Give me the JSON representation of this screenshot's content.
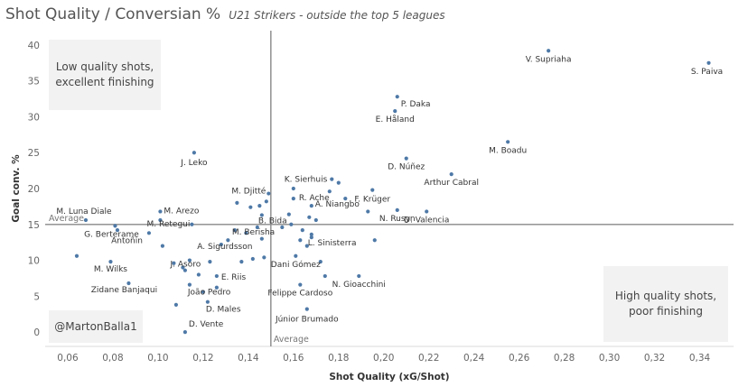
{
  "title": "Shot Quality / Conversian %",
  "subtitle": "U21 Strikers - outside the top 5 leagues",
  "annotations": {
    "top_left": "Low quality shots, excellent finishing",
    "bottom_right": "High quality shots, poor finishing",
    "credit": "@MartonBalla1",
    "avg_x_label": "Average",
    "avg_y_label": "Average"
  },
  "chart_data": {
    "type": "scatter",
    "xlabel": "Shot Quality (xG/Shot)",
    "ylabel": "Goal conv. %",
    "xlim": [
      0.05,
      0.355
    ],
    "ylim": [
      -2,
      42
    ],
    "x_ticks": [
      "0,06",
      "0,08",
      "0,10",
      "0,12",
      "0,14",
      "0,16",
      "0,18",
      "0,20",
      "0,22",
      "0,24",
      "0,26",
      "0,28",
      "0,30",
      "0,32",
      "0,34"
    ],
    "x_tick_values": [
      0.06,
      0.08,
      0.1,
      0.12,
      0.14,
      0.16,
      0.18,
      0.2,
      0.22,
      0.24,
      0.26,
      0.28,
      0.3,
      0.32,
      0.34
    ],
    "y_ticks": [
      "0",
      "5",
      "10",
      "15",
      "20",
      "25",
      "30",
      "35",
      "40"
    ],
    "y_tick_values": [
      0,
      5,
      10,
      15,
      20,
      25,
      30,
      35,
      40
    ],
    "average_x": 0.15,
    "average_y": 15,
    "point_color": "#4e79a7",
    "grid": false,
    "points": [
      {
        "x": 0.273,
        "y": 39.2,
        "label": "V. Supriaha"
      },
      {
        "x": 0.344,
        "y": 37.5,
        "label": "S. Paiva"
      },
      {
        "x": 0.206,
        "y": 32.8,
        "label": "P. Daka"
      },
      {
        "x": 0.205,
        "y": 30.8,
        "label": "E. Håland"
      },
      {
        "x": 0.255,
        "y": 26.5,
        "label": "M. Boadu"
      },
      {
        "x": 0.116,
        "y": 25.0,
        "label": "J. Leko"
      },
      {
        "x": 0.21,
        "y": 24.2,
        "label": "D. Núñez"
      },
      {
        "x": 0.23,
        "y": 22.0,
        "label": "Arthur Cabral"
      },
      {
        "x": 0.177,
        "y": 21.3,
        "label": "K. Sierhuis"
      },
      {
        "x": 0.149,
        "y": 19.3,
        "label": "M. Djitté"
      },
      {
        "x": 0.16,
        "y": 18.6,
        "label": "R. Ache"
      },
      {
        "x": 0.195,
        "y": 19.8,
        "label": "F. Krüger"
      },
      {
        "x": 0.168,
        "y": 17.6,
        "label": "A. Niangbo"
      },
      {
        "x": 0.101,
        "y": 16.8,
        "label": "M. Arezo"
      },
      {
        "x": 0.068,
        "y": 15.6,
        "label": "M. Luna Diale"
      },
      {
        "x": 0.146,
        "y": 16.3,
        "label": "B. Bida"
      },
      {
        "x": 0.206,
        "y": 17.0,
        "label": "N. Rusyn"
      },
      {
        "x": 0.219,
        "y": 16.8,
        "label": "D. Valencia"
      },
      {
        "x": 0.115,
        "y": 15.0,
        "label": "M. Retegui"
      },
      {
        "x": 0.081,
        "y": 14.8,
        "label": "G. Berterame"
      },
      {
        "x": 0.134,
        "y": 14.2,
        "label": "M. Berisha"
      },
      {
        "x": 0.096,
        "y": 13.8,
        "label": "Antoñin"
      },
      {
        "x": 0.168,
        "y": 13.2,
        "label": "L. Sinisterra"
      },
      {
        "x": 0.128,
        "y": 12.2,
        "label": "A. Sigurdsson"
      },
      {
        "x": 0.161,
        "y": 10.6,
        "label": "Dani Gómez"
      },
      {
        "x": 0.079,
        "y": 9.8,
        "label": "M. Wilks"
      },
      {
        "x": 0.111,
        "y": 9.0,
        "label": "J. Asoro"
      },
      {
        "x": 0.126,
        "y": 7.8,
        "label": "E. Riis"
      },
      {
        "x": 0.189,
        "y": 7.8,
        "label": "N. Gioacchini"
      },
      {
        "x": 0.087,
        "y": 6.8,
        "label": "Zidane Banjaqui"
      },
      {
        "x": 0.114,
        "y": 6.6,
        "label": "João Pedro"
      },
      {
        "x": 0.163,
        "y": 6.6,
        "label": "Felippe Cardoso"
      },
      {
        "x": 0.122,
        "y": 4.2,
        "label": "D. Males"
      },
      {
        "x": 0.166,
        "y": 3.2,
        "label": "Júnior Brumado"
      },
      {
        "x": 0.112,
        "y": 0.0,
        "label": "D. Vente"
      },
      {
        "x": 0.064,
        "y": 10.6,
        "label": ""
      },
      {
        "x": 0.082,
        "y": 14.2,
        "label": ""
      },
      {
        "x": 0.101,
        "y": 15.6,
        "label": ""
      },
      {
        "x": 0.102,
        "y": 12.0,
        "label": ""
      },
      {
        "x": 0.107,
        "y": 9.6,
        "label": ""
      },
      {
        "x": 0.112,
        "y": 8.6,
        "label": ""
      },
      {
        "x": 0.114,
        "y": 10.0,
        "label": ""
      },
      {
        "x": 0.118,
        "y": 8.0,
        "label": ""
      },
      {
        "x": 0.12,
        "y": 5.6,
        "label": ""
      },
      {
        "x": 0.108,
        "y": 3.8,
        "label": ""
      },
      {
        "x": 0.123,
        "y": 9.8,
        "label": ""
      },
      {
        "x": 0.126,
        "y": 6.2,
        "label": ""
      },
      {
        "x": 0.131,
        "y": 12.8,
        "label": ""
      },
      {
        "x": 0.135,
        "y": 18.0,
        "label": ""
      },
      {
        "x": 0.137,
        "y": 9.8,
        "label": ""
      },
      {
        "x": 0.139,
        "y": 13.8,
        "label": ""
      },
      {
        "x": 0.141,
        "y": 17.4,
        "label": ""
      },
      {
        "x": 0.142,
        "y": 10.2,
        "label": ""
      },
      {
        "x": 0.144,
        "y": 14.6,
        "label": ""
      },
      {
        "x": 0.145,
        "y": 17.6,
        "label": ""
      },
      {
        "x": 0.146,
        "y": 13.0,
        "label": ""
      },
      {
        "x": 0.147,
        "y": 10.4,
        "label": ""
      },
      {
        "x": 0.148,
        "y": 18.2,
        "label": ""
      },
      {
        "x": 0.155,
        "y": 14.6,
        "label": ""
      },
      {
        "x": 0.158,
        "y": 16.4,
        "label": ""
      },
      {
        "x": 0.159,
        "y": 15.0,
        "label": ""
      },
      {
        "x": 0.16,
        "y": 20.0,
        "label": ""
      },
      {
        "x": 0.163,
        "y": 12.8,
        "label": ""
      },
      {
        "x": 0.164,
        "y": 14.2,
        "label": ""
      },
      {
        "x": 0.166,
        "y": 12.0,
        "label": ""
      },
      {
        "x": 0.167,
        "y": 16.0,
        "label": ""
      },
      {
        "x": 0.168,
        "y": 13.6,
        "label": ""
      },
      {
        "x": 0.17,
        "y": 15.6,
        "label": ""
      },
      {
        "x": 0.172,
        "y": 9.8,
        "label": ""
      },
      {
        "x": 0.174,
        "y": 7.8,
        "label": ""
      },
      {
        "x": 0.176,
        "y": 19.6,
        "label": ""
      },
      {
        "x": 0.18,
        "y": 20.8,
        "label": ""
      },
      {
        "x": 0.183,
        "y": 18.6,
        "label": ""
      },
      {
        "x": 0.193,
        "y": 16.8,
        "label": ""
      },
      {
        "x": 0.196,
        "y": 12.8,
        "label": ""
      }
    ]
  }
}
